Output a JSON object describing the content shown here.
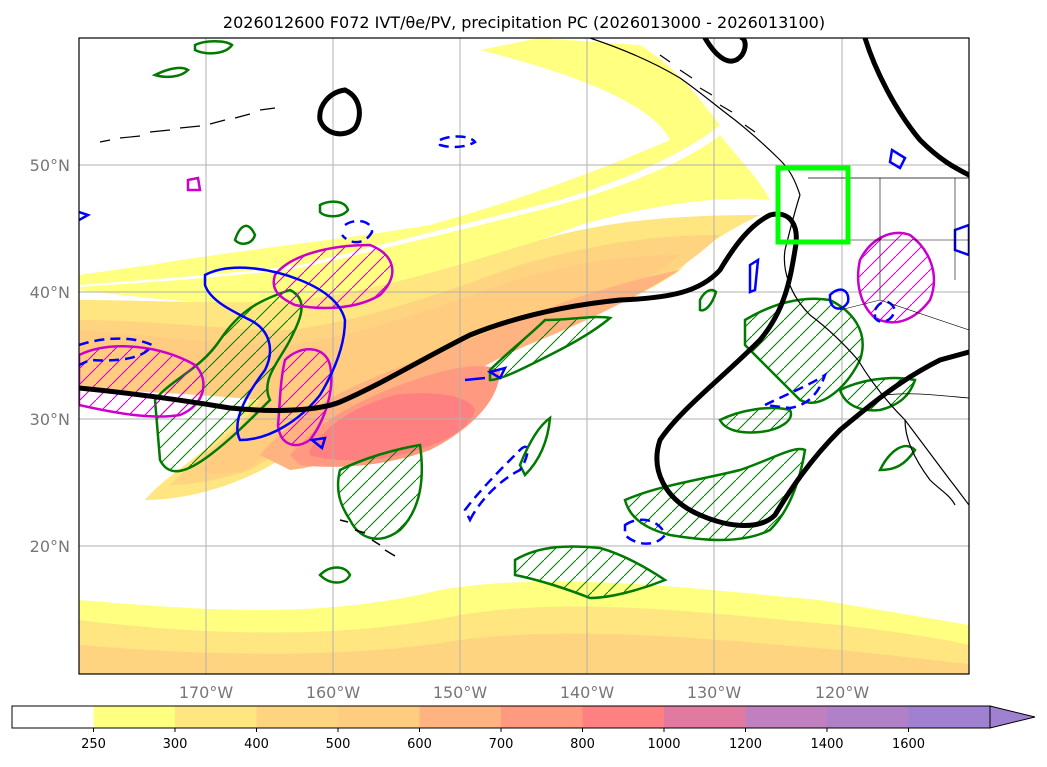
{
  "title": "2026012600 F072 IVT/θe/PV, precipitation PC (2026013000 - 2026013100)",
  "map": {
    "lat_ticks": [
      "50°N",
      "40°N",
      "30°N",
      "20°N"
    ],
    "lon_ticks": [
      "170°W",
      "160°W",
      "150°W",
      "140°W",
      "130°W",
      "120°W"
    ],
    "lat_values": [
      50,
      40,
      30,
      20
    ],
    "lon_values": [
      -170,
      -160,
      -150,
      -140,
      -130,
      -120
    ],
    "extent": {
      "lon_min": -180,
      "lon_max": -110,
      "lat_min": 10,
      "lat_max": 60
    },
    "highlight_box": {
      "lon_min": -125,
      "lon_max": -119.5,
      "lat_min": 44,
      "lat_max": 50,
      "color": "#00ff00"
    }
  },
  "colorbar": {
    "levels": [
      "250",
      "300",
      "400",
      "500",
      "600",
      "700",
      "800",
      "1000",
      "1200",
      "1400",
      "1600"
    ],
    "colors": [
      "#ffffff",
      "#ffff80",
      "#ffe680",
      "#ffd480",
      "#ffcc80",
      "#ffb380",
      "#ff9980",
      "#ff8080",
      "#e07aa0",
      "#c080c0",
      "#b080c8",
      "#a080d0"
    ],
    "extend": "max"
  },
  "legend_colors": {
    "pv_line": "#000000",
    "theta_positive": "#cc00cc",
    "theta_negative": "#0000ff",
    "precip_pc": "#007a00"
  }
}
